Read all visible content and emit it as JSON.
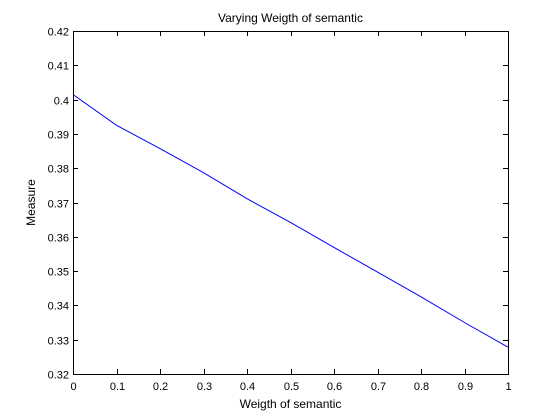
{
  "chart_data": {
    "type": "line",
    "title": "Varying Weigth of semantic",
    "xlabel": "Weigth of semantic",
    "ylabel": "Measure",
    "xlim": [
      0,
      1
    ],
    "ylim": [
      0.32,
      0.42
    ],
    "xticks": [
      0,
      0.1,
      0.2,
      0.3,
      0.4,
      0.5,
      0.6,
      0.7,
      0.8,
      0.9,
      1
    ],
    "xtick_labels": [
      "0",
      "0.1",
      "0.2",
      "0.3",
      "0.4",
      "0.5",
      "0.6",
      "0.7",
      "0.8",
      "0.9",
      "1"
    ],
    "yticks": [
      0.32,
      0.33,
      0.34,
      0.35,
      0.36,
      0.37,
      0.38,
      0.39,
      0.4,
      0.41,
      0.42
    ],
    "ytick_labels": [
      "0.32",
      "0.33",
      "0.34",
      "0.35",
      "0.36",
      "0.37",
      "0.38",
      "0.39",
      "0.4",
      "0.41",
      "0.42"
    ],
    "grid": false,
    "legend": "none",
    "series": [
      {
        "color": "#0000ff",
        "x": [
          0,
          0.1,
          0.2,
          0.3,
          0.4,
          0.5,
          0.6,
          0.7,
          0.8,
          0.9,
          1
        ],
        "y": [
          0.4015,
          0.3925,
          0.3857,
          0.3787,
          0.3711,
          0.3642,
          0.3569,
          0.3497,
          0.3425,
          0.335,
          0.3278
        ]
      }
    ]
  }
}
